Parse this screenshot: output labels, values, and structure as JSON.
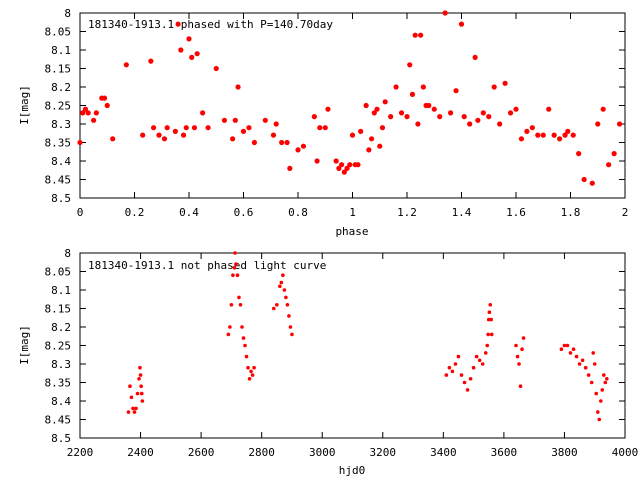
{
  "chart_data": [
    {
      "type": "scatter",
      "title": "181340-1913.1 phased with P=140.70day",
      "xlabel": "phase",
      "ylabel": "I[mag]",
      "xlim": [
        0,
        2
      ],
      "ylim": [
        8.5,
        8.0
      ],
      "y_inverted": true,
      "x_ticks": [
        "0",
        "0.2",
        "0.4",
        "0.6",
        "0.8",
        "1",
        "1.2",
        "1.4",
        "1.6",
        "1.8",
        "2"
      ],
      "y_ticks": [
        "8",
        "8.05",
        "8.1",
        "8.15",
        "8.2",
        "8.25",
        "8.3",
        "8.35",
        "8.4",
        "8.45",
        "8.5"
      ],
      "grid": false,
      "marker_color": "#ff0000",
      "series": [
        {
          "x": [
            0.0,
            0.01,
            0.02,
            0.03,
            0.05,
            0.06,
            0.08,
            0.09,
            0.1,
            0.12,
            0.17,
            0.23,
            0.26,
            0.27,
            0.29,
            0.31,
            0.32,
            0.35,
            0.36,
            0.37,
            0.38,
            0.39,
            0.4,
            0.41,
            0.42,
            0.43,
            0.45,
            0.47,
            0.5,
            0.53,
            0.56,
            0.57,
            0.58,
            0.6,
            0.62,
            0.64,
            0.68,
            0.71,
            0.72,
            0.74,
            0.76,
            0.77,
            0.8,
            0.82,
            0.86,
            0.87,
            0.88,
            0.9,
            0.91,
            0.94,
            0.95,
            0.96,
            0.97,
            0.98,
            0.99,
            1.0,
            1.01,
            1.02,
            1.03,
            1.05,
            1.06,
            1.07,
            1.08,
            1.09,
            1.1,
            1.11,
            1.12,
            1.14,
            1.16,
            1.18,
            1.2,
            1.21,
            1.22,
            1.23,
            1.24,
            1.25,
            1.26,
            1.27,
            1.28,
            1.3,
            1.32,
            1.34,
            1.36,
            1.38,
            1.4,
            1.41,
            1.43,
            1.45,
            1.46,
            1.48,
            1.5,
            1.52,
            1.54,
            1.56,
            1.58,
            1.6,
            1.62,
            1.64,
            1.66,
            1.68,
            1.7,
            1.72,
            1.74,
            1.76,
            1.78,
            1.79,
            1.81,
            1.83,
            1.85,
            1.88,
            1.9,
            1.92,
            1.94,
            1.96,
            1.98
          ],
          "y": [
            8.35,
            8.27,
            8.26,
            8.27,
            8.29,
            8.27,
            8.23,
            8.23,
            8.25,
            8.34,
            8.14,
            8.33,
            8.13,
            8.31,
            8.33,
            8.34,
            8.31,
            8.32,
            8.03,
            8.1,
            8.33,
            8.31,
            8.07,
            8.12,
            8.31,
            8.11,
            8.27,
            8.31,
            8.15,
            8.29,
            8.34,
            8.29,
            8.2,
            8.32,
            8.31,
            8.35,
            8.29,
            8.33,
            8.3,
            8.35,
            8.35,
            8.42,
            8.37,
            8.36,
            8.28,
            8.4,
            8.31,
            8.31,
            8.26,
            8.4,
            8.42,
            8.41,
            8.43,
            8.42,
            8.41,
            8.33,
            8.41,
            8.41,
            8.32,
            8.25,
            8.37,
            8.34,
            8.27,
            8.26,
            8.36,
            8.31,
            8.24,
            8.28,
            8.2,
            8.27,
            8.28,
            8.14,
            8.22,
            8.06,
            8.3,
            8.06,
            8.2,
            8.25,
            8.25,
            8.26,
            8.28,
            8.0,
            8.27,
            8.21,
            8.03,
            8.28,
            8.3,
            8.12,
            8.29,
            8.27,
            8.28,
            8.2,
            8.3,
            8.19,
            8.27,
            8.26,
            8.34,
            8.32,
            8.31,
            8.33,
            8.33,
            8.26,
            8.33,
            8.34,
            8.33,
            8.32,
            8.33,
            8.38,
            8.45,
            8.46,
            8.3,
            8.26,
            8.41,
            8.38,
            8.3
          ]
        }
      ]
    },
    {
      "type": "scatter",
      "title": "181340-1913.1 not phased light curve",
      "xlabel": "hjd0",
      "ylabel": "I[mag]",
      "xlim": [
        2200,
        4000
      ],
      "ylim": [
        8.5,
        8.0
      ],
      "y_inverted": true,
      "x_ticks": [
        "2200",
        "2400",
        "2600",
        "2800",
        "3000",
        "3200",
        "3400",
        "3600",
        "3800",
        "4000"
      ],
      "y_ticks": [
        "8",
        "8.05",
        "8.1",
        "8.15",
        "8.2",
        "8.25",
        "8.3",
        "8.35",
        "8.4",
        "8.45",
        "8.5"
      ],
      "grid": false,
      "marker_color": "#ff0000",
      "series": [
        {
          "x": [
            2360,
            2365,
            2370,
            2375,
            2380,
            2385,
            2390,
            2395,
            2398,
            2400,
            2402,
            2404,
            2406,
            2690,
            2695,
            2700,
            2705,
            2710,
            2712,
            2715,
            2720,
            2725,
            2730,
            2735,
            2740,
            2745,
            2750,
            2755,
            2760,
            2765,
            2770,
            2775,
            2840,
            2850,
            2860,
            2865,
            2870,
            2875,
            2880,
            2885,
            2890,
            2895,
            2900,
            3410,
            3420,
            3430,
            3440,
            3450,
            3460,
            3470,
            3480,
            3490,
            3500,
            3510,
            3520,
            3530,
            3540,
            3545,
            3548,
            3550,
            3552,
            3555,
            3558,
            3560,
            3640,
            3645,
            3650,
            3655,
            3660,
            3665,
            3790,
            3800,
            3810,
            3820,
            3830,
            3840,
            3850,
            3860,
            3870,
            3880,
            3890,
            3895,
            3900,
            3905,
            3910,
            3915,
            3920,
            3925,
            3930,
            3935,
            3940
          ],
          "y": [
            8.43,
            8.36,
            8.39,
            8.42,
            8.43,
            8.42,
            8.38,
            8.34,
            8.31,
            8.33,
            8.36,
            8.38,
            8.4,
            8.22,
            8.2,
            8.14,
            8.06,
            8.04,
            8.0,
            8.03,
            8.06,
            8.12,
            8.14,
            8.2,
            8.23,
            8.25,
            8.28,
            8.31,
            8.34,
            8.32,
            8.33,
            8.31,
            8.15,
            8.14,
            8.09,
            8.08,
            8.06,
            8.1,
            8.12,
            8.14,
            8.17,
            8.2,
            8.22,
            8.33,
            8.31,
            8.32,
            8.3,
            8.28,
            8.33,
            8.35,
            8.37,
            8.34,
            8.31,
            8.28,
            8.29,
            8.3,
            8.27,
            8.25,
            8.22,
            8.18,
            8.16,
            8.14,
            8.18,
            8.22,
            8.25,
            8.28,
            8.3,
            8.36,
            8.26,
            8.23,
            8.26,
            8.25,
            8.25,
            8.27,
            8.26,
            8.28,
            8.3,
            8.29,
            8.31,
            8.33,
            8.35,
            8.27,
            8.3,
            8.38,
            8.43,
            8.45,
            8.4,
            8.37,
            8.33,
            8.35,
            8.34
          ]
        }
      ]
    }
  ]
}
